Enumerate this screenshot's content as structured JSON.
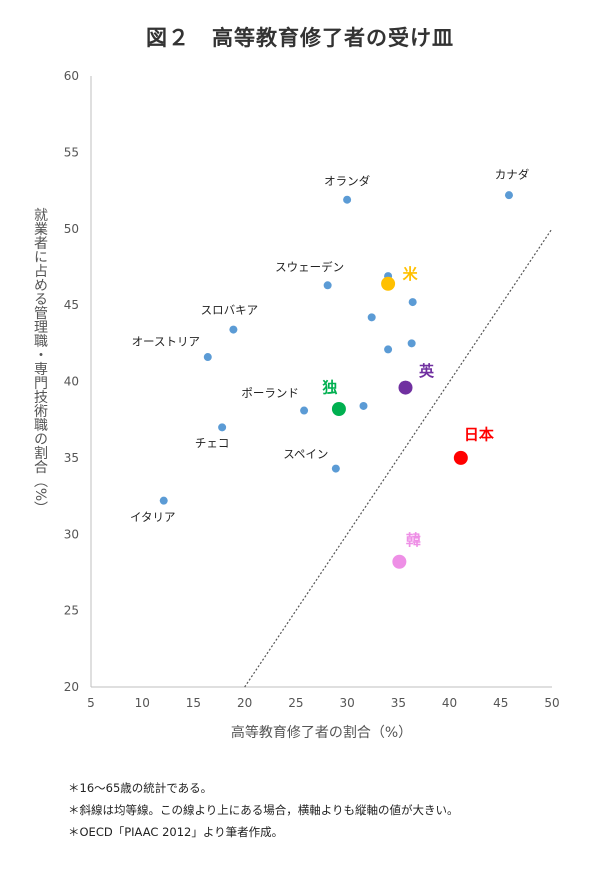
{
  "chart_data": {
    "type": "scatter",
    "title": "図２　高等教育修了者の受け皿",
    "xlabel": "高等教育修了者の割合（%）",
    "ylabel": "就業者に占める管理職・専門技術職の割合（%）",
    "xlim": [
      5,
      50
    ],
    "ylim": [
      20,
      60
    ],
    "xticks": [
      5,
      10,
      15,
      20,
      25,
      30,
      35,
      40,
      45,
      50
    ],
    "yticks": [
      20,
      25,
      30,
      35,
      40,
      45,
      50,
      55,
      60
    ],
    "grid": false,
    "reference_line": {
      "style": "dotted",
      "from": [
        20,
        20
      ],
      "to": [
        50,
        50
      ],
      "color": "#555555"
    },
    "default_color": "#5B9BD5",
    "points": [
      {
        "label": "オランダ",
        "x": 30.0,
        "y": 51.9
      },
      {
        "label": "カナダ",
        "x": 45.8,
        "y": 52.2
      },
      {
        "label": "スウェーデン",
        "x": 28.1,
        "y": 46.3
      },
      {
        "label": "",
        "x": 34.0,
        "y": 46.9
      },
      {
        "label": "",
        "x": 36.4,
        "y": 45.2
      },
      {
        "label": "",
        "x": 32.4,
        "y": 44.2
      },
      {
        "label": "スロバキア",
        "x": 18.9,
        "y": 43.4
      },
      {
        "label": "オーストリア",
        "x": 16.4,
        "y": 41.6
      },
      {
        "label": "",
        "x": 36.3,
        "y": 42.5
      },
      {
        "label": "",
        "x": 34.0,
        "y": 42.1
      },
      {
        "label": "ポーランド",
        "x": 25.8,
        "y": 38.1
      },
      {
        "label": "",
        "x": 31.6,
        "y": 38.4
      },
      {
        "label": "チェコ",
        "x": 17.8,
        "y": 37.0
      },
      {
        "label": "スペイン",
        "x": 28.9,
        "y": 34.3
      },
      {
        "label": "イタリア",
        "x": 12.1,
        "y": 32.2
      },
      {
        "label": "米",
        "x": 34.0,
        "y": 46.4,
        "color": "#FFC000",
        "highlight": true
      },
      {
        "label": "英",
        "x": 35.7,
        "y": 39.6,
        "color": "#7030A0",
        "highlight": true
      },
      {
        "label": "独",
        "x": 29.2,
        "y": 38.2,
        "color": "#00B050",
        "highlight": true
      },
      {
        "label": "日本",
        "x": 41.1,
        "y": 35.0,
        "color": "#FF0000",
        "highlight": true
      },
      {
        "label": "韓",
        "x": 35.1,
        "y": 28.2,
        "color": "#EE8FE6",
        "highlight": true
      }
    ]
  },
  "notes": [
    "＊16～65歳の統計である。",
    "＊斜線は均等線。この線より上にある場合，横軸よりも縦軸の値が大きい。",
    "＊OECD「PIAAC 2012」より筆者作成。"
  ]
}
